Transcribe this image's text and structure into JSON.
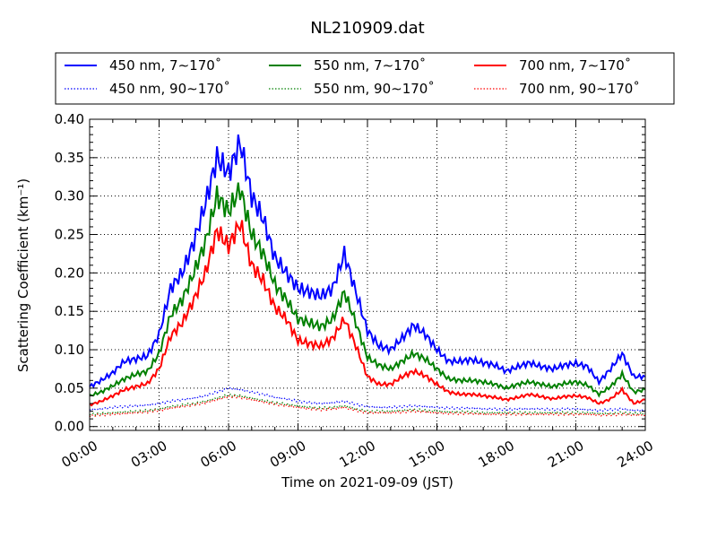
{
  "chart_data": {
    "type": "line",
    "title": "NL210909.dat",
    "xlabel": "Time on 2021-09-09 (JST)",
    "ylabel": "Scattering Coefficient (km⁻¹)",
    "xlim_hours": [
      0,
      24
    ],
    "ylim": [
      -0.005,
      0.4
    ],
    "grid": true,
    "legend_position": "top (above plot, 3 columns)",
    "x_ticks": [
      "00:00",
      "03:00",
      "06:00",
      "09:00",
      "12:00",
      "15:00",
      "18:00",
      "21:00",
      "24:00"
    ],
    "y_ticks": [
      "0.00",
      "0.05",
      "0.10",
      "0.15",
      "0.20",
      "0.25",
      "0.30",
      "0.35",
      "0.40"
    ],
    "x_hours": [
      0,
      0.5,
      1,
      1.5,
      2,
      2.5,
      3,
      3.5,
      4,
      4.5,
      5,
      5.5,
      6,
      6.5,
      7,
      7.5,
      8,
      8.5,
      9,
      9.5,
      10,
      10.5,
      11,
      11.5,
      12,
      12.5,
      13,
      13.5,
      14,
      14.5,
      15,
      15.5,
      16,
      16.5,
      17,
      17.5,
      18,
      18.5,
      19,
      19.5,
      20,
      20.5,
      21,
      21.5,
      22,
      22.5,
      23,
      23.5,
      24
    ],
    "series": [
      {
        "name": "450 nm, 7∼170˚",
        "color": "#0000ff",
        "style": "solid",
        "values": [
          0.052,
          0.06,
          0.07,
          0.085,
          0.088,
          0.092,
          0.12,
          0.18,
          0.2,
          0.24,
          0.29,
          0.35,
          0.33,
          0.37,
          0.3,
          0.27,
          0.22,
          0.2,
          0.18,
          0.175,
          0.17,
          0.18,
          0.225,
          0.175,
          0.125,
          0.105,
          0.1,
          0.115,
          0.132,
          0.12,
          0.1,
          0.085,
          0.085,
          0.087,
          0.083,
          0.08,
          0.072,
          0.078,
          0.083,
          0.078,
          0.075,
          0.08,
          0.082,
          0.078,
          0.058,
          0.075,
          0.095,
          0.065,
          0.065
        ]
      },
      {
        "name": "550 nm, 7∼170˚",
        "color": "#008000",
        "style": "solid",
        "values": [
          0.04,
          0.045,
          0.053,
          0.062,
          0.068,
          0.072,
          0.095,
          0.145,
          0.165,
          0.2,
          0.24,
          0.3,
          0.28,
          0.31,
          0.25,
          0.225,
          0.185,
          0.165,
          0.14,
          0.135,
          0.13,
          0.14,
          0.175,
          0.135,
          0.09,
          0.08,
          0.075,
          0.085,
          0.095,
          0.088,
          0.075,
          0.062,
          0.06,
          0.06,
          0.058,
          0.055,
          0.05,
          0.055,
          0.058,
          0.055,
          0.052,
          0.056,
          0.058,
          0.054,
          0.042,
          0.052,
          0.068,
          0.045,
          0.048
        ]
      },
      {
        "name": "700 nm, 7∼170˚",
        "color": "#ff0000",
        "style": "solid",
        "values": [
          0.028,
          0.033,
          0.04,
          0.048,
          0.052,
          0.056,
          0.075,
          0.118,
          0.135,
          0.165,
          0.2,
          0.255,
          0.235,
          0.265,
          0.21,
          0.19,
          0.155,
          0.14,
          0.112,
          0.108,
          0.105,
          0.115,
          0.14,
          0.105,
          0.065,
          0.055,
          0.055,
          0.065,
          0.072,
          0.066,
          0.055,
          0.045,
          0.042,
          0.042,
          0.04,
          0.038,
          0.035,
          0.038,
          0.042,
          0.039,
          0.036,
          0.039,
          0.04,
          0.038,
          0.03,
          0.036,
          0.048,
          0.03,
          0.035
        ]
      },
      {
        "name": "450 nm, 90∼170˚",
        "color": "#0000ff",
        "style": "dotted",
        "values": [
          0.022,
          0.023,
          0.025,
          0.026,
          0.027,
          0.028,
          0.03,
          0.033,
          0.035,
          0.037,
          0.04,
          0.045,
          0.05,
          0.048,
          0.045,
          0.042,
          0.038,
          0.036,
          0.033,
          0.031,
          0.03,
          0.031,
          0.033,
          0.029,
          0.026,
          0.025,
          0.025,
          0.026,
          0.027,
          0.026,
          0.025,
          0.024,
          0.024,
          0.024,
          0.023,
          0.023,
          0.022,
          0.023,
          0.023,
          0.023,
          0.022,
          0.023,
          0.023,
          0.022,
          0.021,
          0.022,
          0.023,
          0.021,
          0.021
        ]
      },
      {
        "name": "550 nm, 90∼170˚",
        "color": "#008000",
        "style": "dotted",
        "values": [
          0.016,
          0.017,
          0.018,
          0.019,
          0.02,
          0.021,
          0.023,
          0.026,
          0.028,
          0.03,
          0.033,
          0.037,
          0.041,
          0.04,
          0.037,
          0.034,
          0.031,
          0.029,
          0.027,
          0.025,
          0.024,
          0.025,
          0.027,
          0.023,
          0.02,
          0.02,
          0.02,
          0.021,
          0.022,
          0.021,
          0.02,
          0.019,
          0.019,
          0.019,
          0.018,
          0.018,
          0.018,
          0.018,
          0.018,
          0.018,
          0.018,
          0.018,
          0.018,
          0.018,
          0.017,
          0.017,
          0.018,
          0.017,
          0.017
        ]
      },
      {
        "name": "700 nm, 90∼170˚",
        "color": "#ff0000",
        "style": "dotted",
        "values": [
          0.014,
          0.015,
          0.016,
          0.017,
          0.018,
          0.019,
          0.021,
          0.024,
          0.026,
          0.028,
          0.031,
          0.035,
          0.039,
          0.038,
          0.035,
          0.032,
          0.029,
          0.027,
          0.025,
          0.023,
          0.022,
          0.023,
          0.025,
          0.021,
          0.018,
          0.018,
          0.018,
          0.019,
          0.02,
          0.019,
          0.018,
          0.017,
          0.017,
          0.017,
          0.016,
          0.016,
          0.016,
          0.016,
          0.016,
          0.016,
          0.016,
          0.016,
          0.016,
          0.016,
          0.015,
          0.015,
          0.016,
          0.015,
          0.015
        ]
      }
    ]
  }
}
